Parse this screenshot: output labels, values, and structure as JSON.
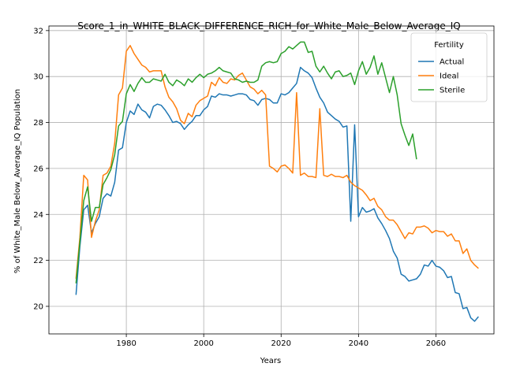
{
  "chart_data": {
    "type": "line",
    "title": "Score_1_in_WHITE_BLACK_DIFFERENCE_RICH_for_White_Male_Below_Average_IQ",
    "xlabel": "Years",
    "ylabel": "% of White_Male Below_Average_IQ Population",
    "xlim": [
      1960,
      2075
    ],
    "ylim": [
      18.8,
      32.2
    ],
    "xticks": [
      1980,
      2000,
      2020,
      2040,
      2060
    ],
    "yticks": [
      20,
      22,
      24,
      26,
      28,
      30,
      32
    ],
    "grid": true,
    "legend": {
      "title": "Fertility",
      "position": "top-right"
    },
    "series": [
      {
        "name": "Actual",
        "color": "#1f77b4",
        "points": [
          [
            1967,
            20.5
          ],
          [
            1968,
            22.6
          ],
          [
            1969,
            24.2
          ],
          [
            1970,
            24.4
          ],
          [
            1971,
            23.2
          ],
          [
            1972,
            23.6
          ],
          [
            1973,
            23.9
          ],
          [
            1974,
            24.7
          ],
          [
            1975,
            24.9
          ],
          [
            1976,
            24.8
          ],
          [
            1977,
            25.4
          ],
          [
            1978,
            26.8
          ],
          [
            1979,
            26.9
          ],
          [
            1980,
            28.0
          ],
          [
            1981,
            28.5
          ],
          [
            1982,
            28.35
          ],
          [
            1983,
            28.8
          ],
          [
            1984,
            28.55
          ],
          [
            1985,
            28.45
          ],
          [
            1986,
            28.2
          ],
          [
            1987,
            28.7
          ],
          [
            1988,
            28.8
          ],
          [
            1989,
            28.75
          ],
          [
            1990,
            28.55
          ],
          [
            1991,
            28.3
          ],
          [
            1992,
            28.0
          ],
          [
            1993,
            28.05
          ],
          [
            1994,
            27.95
          ],
          [
            1995,
            27.7
          ],
          [
            1996,
            27.9
          ],
          [
            1997,
            28.05
          ],
          [
            1998,
            28.3
          ],
          [
            1999,
            28.3
          ],
          [
            2000,
            28.55
          ],
          [
            2001,
            28.7
          ],
          [
            2002,
            29.15
          ],
          [
            2003,
            29.1
          ],
          [
            2004,
            29.25
          ],
          [
            2005,
            29.2
          ],
          [
            2006,
            29.2
          ],
          [
            2007,
            29.15
          ],
          [
            2008,
            29.2
          ],
          [
            2009,
            29.25
          ],
          [
            2010,
            29.25
          ],
          [
            2011,
            29.2
          ],
          [
            2012,
            29.0
          ],
          [
            2013,
            28.95
          ],
          [
            2014,
            28.75
          ],
          [
            2015,
            29.0
          ],
          [
            2016,
            29.05
          ],
          [
            2017,
            29.0
          ],
          [
            2018,
            28.85
          ],
          [
            2019,
            28.85
          ],
          [
            2020,
            29.25
          ],
          [
            2021,
            29.2
          ],
          [
            2022,
            29.3
          ],
          [
            2023,
            29.5
          ],
          [
            2024,
            29.7
          ],
          [
            2025,
            30.4
          ],
          [
            2026,
            30.25
          ],
          [
            2027,
            30.15
          ],
          [
            2028,
            29.95
          ],
          [
            2029,
            29.5
          ],
          [
            2030,
            29.1
          ],
          [
            2031,
            28.85
          ],
          [
            2032,
            28.45
          ],
          [
            2033,
            28.3
          ],
          [
            2034,
            28.15
          ],
          [
            2035,
            28.05
          ],
          [
            2036,
            27.8
          ],
          [
            2037,
            27.85
          ],
          [
            2038,
            23.7
          ],
          [
            2039,
            27.9
          ],
          [
            2040,
            23.9
          ],
          [
            2041,
            24.3
          ],
          [
            2042,
            24.1
          ],
          [
            2043,
            24.15
          ],
          [
            2044,
            24.25
          ],
          [
            2045,
            23.85
          ],
          [
            2046,
            23.6
          ],
          [
            2047,
            23.3
          ],
          [
            2048,
            22.95
          ],
          [
            2049,
            22.4
          ],
          [
            2050,
            22.1
          ],
          [
            2051,
            21.4
          ],
          [
            2052,
            21.3
          ],
          [
            2053,
            21.1
          ],
          [
            2054,
            21.15
          ],
          [
            2055,
            21.2
          ],
          [
            2056,
            21.4
          ],
          [
            2057,
            21.8
          ],
          [
            2058,
            21.75
          ],
          [
            2059,
            22.0
          ],
          [
            2060,
            21.75
          ],
          [
            2061,
            21.7
          ],
          [
            2062,
            21.55
          ],
          [
            2063,
            21.25
          ],
          [
            2064,
            21.3
          ],
          [
            2065,
            20.6
          ],
          [
            2066,
            20.55
          ],
          [
            2067,
            19.9
          ],
          [
            2068,
            19.95
          ],
          [
            2069,
            19.5
          ],
          [
            2070,
            19.35
          ],
          [
            2071,
            19.55
          ]
        ]
      },
      {
        "name": "Ideal",
        "color": "#ff7f0e",
        "points": [
          [
            1967,
            21.2
          ],
          [
            1968,
            23.0
          ],
          [
            1969,
            25.7
          ],
          [
            1970,
            25.5
          ],
          [
            1971,
            23.0
          ],
          [
            1972,
            23.7
          ],
          [
            1973,
            24.2
          ],
          [
            1974,
            25.7
          ],
          [
            1975,
            25.8
          ],
          [
            1976,
            26.1
          ],
          [
            1977,
            27.1
          ],
          [
            1978,
            29.2
          ],
          [
            1979,
            29.5
          ],
          [
            1980,
            31.1
          ],
          [
            1981,
            31.35
          ],
          [
            1982,
            31.0
          ],
          [
            1983,
            30.75
          ],
          [
            1984,
            30.5
          ],
          [
            1985,
            30.4
          ],
          [
            1986,
            30.2
          ],
          [
            1987,
            30.25
          ],
          [
            1988,
            30.25
          ],
          [
            1989,
            30.25
          ],
          [
            1990,
            29.55
          ],
          [
            1991,
            29.1
          ],
          [
            1992,
            28.9
          ],
          [
            1993,
            28.6
          ],
          [
            1994,
            28.1
          ],
          [
            1995,
            27.95
          ],
          [
            1996,
            28.4
          ],
          [
            1997,
            28.25
          ],
          [
            1998,
            28.75
          ],
          [
            1999,
            28.95
          ],
          [
            2000,
            29.05
          ],
          [
            2001,
            29.15
          ],
          [
            2002,
            29.75
          ],
          [
            2003,
            29.6
          ],
          [
            2004,
            29.95
          ],
          [
            2005,
            29.75
          ],
          [
            2006,
            29.7
          ],
          [
            2007,
            29.9
          ],
          [
            2008,
            29.85
          ],
          [
            2009,
            30.05
          ],
          [
            2010,
            30.15
          ],
          [
            2011,
            29.85
          ],
          [
            2012,
            29.55
          ],
          [
            2013,
            29.45
          ],
          [
            2014,
            29.25
          ],
          [
            2015,
            29.4
          ],
          [
            2016,
            29.2
          ],
          [
            2017,
            26.1
          ],
          [
            2018,
            26.0
          ],
          [
            2019,
            25.85
          ],
          [
            2020,
            26.1
          ],
          [
            2021,
            26.15
          ],
          [
            2022,
            26.0
          ],
          [
            2023,
            25.8
          ],
          [
            2024,
            29.3
          ],
          [
            2025,
            25.7
          ],
          [
            2026,
            25.8
          ],
          [
            2027,
            25.65
          ],
          [
            2028,
            25.65
          ],
          [
            2029,
            25.6
          ],
          [
            2030,
            28.6
          ],
          [
            2031,
            25.7
          ],
          [
            2032,
            25.65
          ],
          [
            2033,
            25.75
          ],
          [
            2034,
            25.65
          ],
          [
            2035,
            25.65
          ],
          [
            2036,
            25.6
          ],
          [
            2037,
            25.7
          ],
          [
            2038,
            25.4
          ],
          [
            2039,
            25.25
          ],
          [
            2040,
            25.15
          ],
          [
            2041,
            25.05
          ],
          [
            2042,
            24.85
          ],
          [
            2043,
            24.6
          ],
          [
            2044,
            24.7
          ],
          [
            2045,
            24.35
          ],
          [
            2046,
            24.2
          ],
          [
            2047,
            23.9
          ],
          [
            2048,
            23.75
          ],
          [
            2049,
            23.75
          ],
          [
            2050,
            23.55
          ],
          [
            2051,
            23.25
          ],
          [
            2052,
            22.95
          ],
          [
            2053,
            23.2
          ],
          [
            2054,
            23.15
          ],
          [
            2055,
            23.45
          ],
          [
            2056,
            23.45
          ],
          [
            2057,
            23.5
          ],
          [
            2058,
            23.4
          ],
          [
            2059,
            23.2
          ],
          [
            2060,
            23.3
          ],
          [
            2061,
            23.25
          ],
          [
            2062,
            23.25
          ],
          [
            2063,
            23.05
          ],
          [
            2064,
            23.15
          ],
          [
            2065,
            22.85
          ],
          [
            2066,
            22.85
          ],
          [
            2067,
            22.3
          ],
          [
            2068,
            22.5
          ],
          [
            2069,
            22.0
          ],
          [
            2070,
            21.8
          ],
          [
            2071,
            21.65
          ]
        ]
      },
      {
        "name": "Sterile",
        "color": "#2ca02c",
        "points": [
          [
            1967,
            21.0
          ],
          [
            1968,
            22.8
          ],
          [
            1969,
            24.6
          ],
          [
            1970,
            25.2
          ],
          [
            1971,
            23.7
          ],
          [
            1972,
            24.3
          ],
          [
            1973,
            24.3
          ],
          [
            1974,
            25.3
          ],
          [
            1975,
            25.6
          ],
          [
            1976,
            25.95
          ],
          [
            1977,
            26.6
          ],
          [
            1978,
            27.85
          ],
          [
            1979,
            28.05
          ],
          [
            1980,
            29.25
          ],
          [
            1981,
            29.65
          ],
          [
            1982,
            29.35
          ],
          [
            1983,
            29.7
          ],
          [
            1984,
            29.95
          ],
          [
            1985,
            29.75
          ],
          [
            1986,
            29.75
          ],
          [
            1987,
            29.9
          ],
          [
            1988,
            29.85
          ],
          [
            1989,
            29.8
          ],
          [
            1990,
            30.1
          ],
          [
            1991,
            29.75
          ],
          [
            1992,
            29.6
          ],
          [
            1993,
            29.85
          ],
          [
            1994,
            29.75
          ],
          [
            1995,
            29.6
          ],
          [
            1996,
            29.9
          ],
          [
            1997,
            29.75
          ],
          [
            1998,
            29.95
          ],
          [
            1999,
            30.1
          ],
          [
            2000,
            29.95
          ],
          [
            2001,
            30.1
          ],
          [
            2002,
            30.15
          ],
          [
            2003,
            30.25
          ],
          [
            2004,
            30.4
          ],
          [
            2005,
            30.25
          ],
          [
            2006,
            30.2
          ],
          [
            2007,
            30.15
          ],
          [
            2008,
            29.9
          ],
          [
            2009,
            29.85
          ],
          [
            2010,
            29.75
          ],
          [
            2011,
            29.8
          ],
          [
            2012,
            29.75
          ],
          [
            2013,
            29.75
          ],
          [
            2014,
            29.85
          ],
          [
            2015,
            30.45
          ],
          [
            2016,
            30.6
          ],
          [
            2017,
            30.65
          ],
          [
            2018,
            30.6
          ],
          [
            2019,
            30.65
          ],
          [
            2020,
            31.0
          ],
          [
            2021,
            31.1
          ],
          [
            2022,
            31.3
          ],
          [
            2023,
            31.2
          ],
          [
            2024,
            31.35
          ],
          [
            2025,
            31.5
          ],
          [
            2026,
            31.5
          ],
          [
            2027,
            31.05
          ],
          [
            2028,
            31.1
          ],
          [
            2029,
            30.45
          ],
          [
            2030,
            30.2
          ],
          [
            2031,
            30.45
          ],
          [
            2032,
            30.15
          ],
          [
            2033,
            29.9
          ],
          [
            2034,
            30.2
          ],
          [
            2035,
            30.25
          ],
          [
            2036,
            30.0
          ],
          [
            2037,
            30.05
          ],
          [
            2038,
            30.15
          ],
          [
            2039,
            29.65
          ],
          [
            2040,
            30.25
          ],
          [
            2041,
            30.65
          ],
          [
            2042,
            30.1
          ],
          [
            2043,
            30.4
          ],
          [
            2044,
            30.9
          ],
          [
            2045,
            30.1
          ],
          [
            2046,
            30.6
          ],
          [
            2047,
            29.95
          ],
          [
            2048,
            29.3
          ],
          [
            2049,
            30.0
          ],
          [
            2050,
            29.2
          ],
          [
            2051,
            27.95
          ],
          [
            2052,
            27.45
          ],
          [
            2053,
            27.0
          ],
          [
            2054,
            27.5
          ],
          [
            2055,
            26.4
          ]
        ]
      }
    ]
  }
}
